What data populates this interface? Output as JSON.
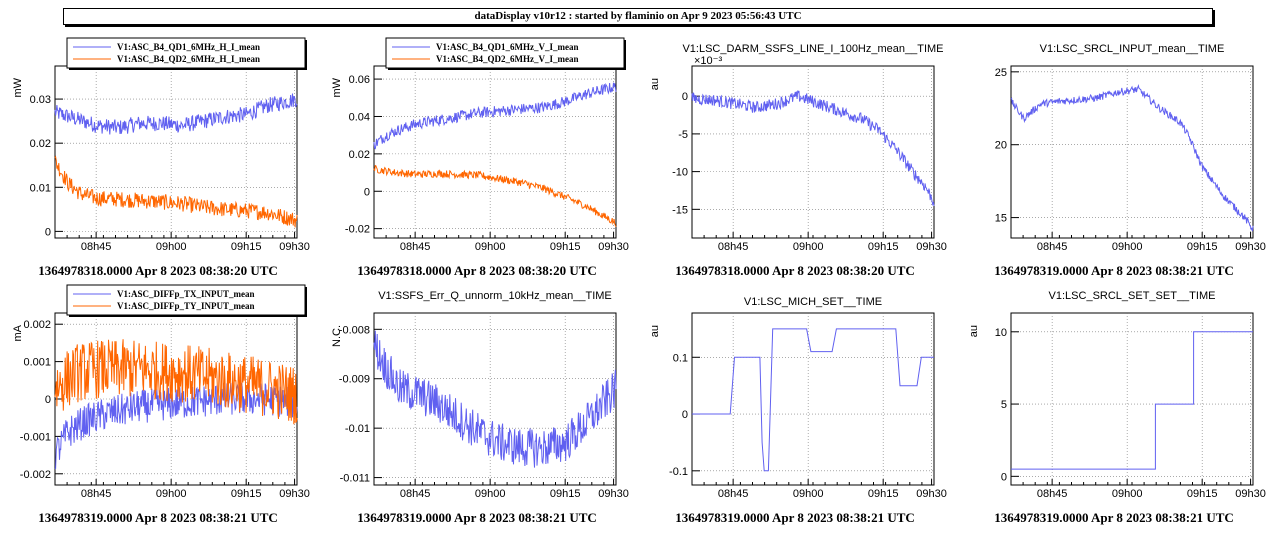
{
  "page": {
    "title": "dataDisplay v10r12 : started by flaminio on Apr  9 2023 05:56:43 UTC"
  },
  "chart_data": [
    {
      "type": "line",
      "title": "",
      "ylabel": "mW",
      "caption": "1364978318.0000 Apr 8 2023 08:38:20 UTC",
      "x_tick_labels": [
        "08h45",
        "09h00",
        "09h15",
        "09h30"
      ],
      "y_ticks": [
        0,
        0.01,
        0.02,
        0.03
      ],
      "y_tick_labels": [
        "0",
        "0.01",
        "0.02",
        "0.03"
      ],
      "xlim": [
        0,
        57
      ],
      "ylim": [
        -0.0015,
        0.0375
      ],
      "grid": true,
      "legend_position": "top-left",
      "series": [
        {
          "name": "V1:ASC_B4_QD1_6MHz_H_I_mean",
          "color": "#6060f0",
          "noise": 0.0018,
          "x": [
            0,
            5,
            10,
            15,
            20,
            25,
            30,
            35,
            40,
            45,
            50,
            57
          ],
          "y": [
            0.027,
            0.0255,
            0.024,
            0.0235,
            0.0245,
            0.0245,
            0.024,
            0.025,
            0.026,
            0.0265,
            0.0285,
            0.03
          ]
        },
        {
          "name": "V1:ASC_B4_QD2_6MHz_H_I_mean",
          "color": "#ff6600",
          "noise": 0.0018,
          "x": [
            0,
            3,
            6,
            10,
            15,
            20,
            25,
            30,
            35,
            40,
            45,
            50,
            57
          ],
          "y": [
            0.016,
            0.011,
            0.0085,
            0.0075,
            0.0073,
            0.007,
            0.0067,
            0.0063,
            0.0055,
            0.005,
            0.0047,
            0.0043,
            0.0025
          ]
        }
      ]
    },
    {
      "type": "line",
      "title": "",
      "ylabel": "mW",
      "caption": "1364978318.0000 Apr 8 2023 08:38:20 UTC",
      "x_tick_labels": [
        "08h45",
        "09h00",
        "09h15",
        "09h30"
      ],
      "y_ticks": [
        -0.02,
        0,
        0.02,
        0.04,
        0.06
      ],
      "y_tick_labels": [
        "-0.02",
        "0",
        "0.02",
        "0.04",
        "0.06"
      ],
      "xlim": [
        0,
        57
      ],
      "ylim": [
        -0.025,
        0.067
      ],
      "grid": true,
      "legend_position": "top-left",
      "series": [
        {
          "name": "V1:ASC_B4_QD1_6MHz_V_I_mean",
          "color": "#6060f0",
          "noise": 0.003,
          "x": [
            0,
            3,
            6,
            10,
            15,
            20,
            25,
            30,
            35,
            40,
            45,
            50,
            57
          ],
          "y": [
            0.025,
            0.03,
            0.033,
            0.036,
            0.038,
            0.04,
            0.042,
            0.043,
            0.044,
            0.045,
            0.048,
            0.052,
            0.056
          ]
        },
        {
          "name": "V1:ASC_B4_QD2_6MHz_V_I_mean",
          "color": "#ff6600",
          "noise": 0.002,
          "x": [
            0,
            5,
            10,
            15,
            20,
            25,
            30,
            35,
            40,
            45,
            50,
            57
          ],
          "y": [
            0.012,
            0.01,
            0.009,
            0.0095,
            0.009,
            0.0085,
            0.0065,
            0.0045,
            0.0015,
            -0.003,
            -0.008,
            -0.017
          ]
        }
      ]
    },
    {
      "type": "line",
      "title": "V1:LSC_DARM_SSFS_LINE_I_100Hz_mean__TIME",
      "ylabel": "au",
      "exponent_label": "×10⁻³",
      "caption": "1364978318.0000 Apr 8 2023 08:38:20 UTC",
      "x_tick_labels": [
        "08h45",
        "09h00",
        "09h15",
        "09h30"
      ],
      "y_ticks": [
        0,
        -5,
        -10,
        -15
      ],
      "y_tick_labels": [
        "0",
        "-5",
        "-10",
        "-15"
      ],
      "xlim": [
        0,
        57
      ],
      "ylim": [
        -18.8,
        4
      ],
      "grid": true,
      "legend_position": "none",
      "series": [
        {
          "name": "",
          "color": "#6060f0",
          "noise": 0.8,
          "x": [
            0,
            5,
            10,
            15,
            20,
            25,
            30,
            35,
            40,
            44,
            48,
            52,
            55,
            57
          ],
          "y": [
            -0.3,
            -0.5,
            -1,
            -1.5,
            -1,
            0,
            -1,
            -2,
            -3,
            -4.5,
            -7,
            -10,
            -12,
            -14
          ]
        }
      ]
    },
    {
      "type": "line",
      "title": "V1:LSC_SRCL_INPUT_mean__TIME",
      "ylabel": "",
      "caption": "1364978319.0000 Apr 8 2023 08:38:21 UTC",
      "x_tick_labels": [
        "08h45",
        "09h00",
        "09h15",
        "09h30"
      ],
      "y_ticks": [
        15,
        20,
        25
      ],
      "y_tick_labels": [
        "15",
        "20",
        "25"
      ],
      "xlim": [
        0,
        57
      ],
      "ylim": [
        13.6,
        25.4
      ],
      "grid": true,
      "legend_position": "none",
      "series": [
        {
          "name": "",
          "color": "#6060f0",
          "noise": 0.25,
          "x": [
            0,
            3,
            7,
            12,
            20,
            25,
            30,
            35,
            40,
            42,
            45,
            50,
            55,
            57
          ],
          "y": [
            23,
            21.8,
            22.8,
            23,
            23.2,
            23.6,
            23.8,
            22.5,
            21.5,
            20.5,
            18.5,
            16.5,
            15,
            14.2
          ]
        }
      ]
    },
    {
      "type": "line",
      "title": "",
      "ylabel": "mA",
      "caption": "1364978319.0000 Apr 8 2023 08:38:21 UTC",
      "x_tick_labels": [
        "08h45",
        "09h00",
        "09h15",
        "09h30"
      ],
      "y_ticks": [
        -0.002,
        -0.001,
        0,
        0.001,
        0.002
      ],
      "y_tick_labels": [
        "-0.002",
        "-0.001",
        "0",
        "0.001",
        "0.002"
      ],
      "xlim": [
        0,
        57
      ],
      "ylim": [
        -0.0023,
        0.0023
      ],
      "grid": true,
      "legend_position": "top-left",
      "series": [
        {
          "name": "V1:ASC_DIFFp_TX_INPUT_mean",
          "color": "#6060f0",
          "noise": 0.00045,
          "x": [
            0,
            3,
            7,
            12,
            20,
            30,
            40,
            50,
            57
          ],
          "y": [
            -0.0015,
            -0.0009,
            -0.0006,
            -0.0004,
            -0.0002,
            -0.0001,
            0,
            0,
            -0.0001
          ]
        },
        {
          "name": "V1:ASC_DIFFp_TY_INPUT_mean",
          "color": "#ff6600",
          "noise": 0.0008,
          "x": [
            0,
            5,
            10,
            20,
            30,
            40,
            50,
            57
          ],
          "y": [
            0.0003,
            0.0007,
            0.0008,
            0.0008,
            0.0007,
            0.0005,
            0.0003,
            0.0001
          ]
        }
      ]
    },
    {
      "type": "line",
      "title": "V1:SSFS_Err_Q_unnorm_10kHz_mean__TIME",
      "ylabel": "N.C.",
      "caption": "1364978319.0000 Apr 8 2023 08:38:21 UTC",
      "x_tick_labels": [
        "08h45",
        "09h00",
        "09h15",
        "09h30"
      ],
      "y_ticks": [
        -0.008,
        -0.009,
        -0.01,
        -0.011
      ],
      "y_tick_labels": [
        "-0.008",
        "-0.009",
        "-0.01",
        "-0.011"
      ],
      "xlim": [
        0,
        57
      ],
      "ylim": [
        -0.01115,
        -0.00767
      ],
      "grid": true,
      "legend_position": "none",
      "series": [
        {
          "name": "",
          "color": "#6060f0",
          "noise": 0.0004,
          "x": [
            0,
            3,
            6,
            10,
            15,
            20,
            25,
            30,
            35,
            40,
            45,
            50,
            55,
            57
          ],
          "y": [
            -0.0083,
            -0.0088,
            -0.0092,
            -0.0093,
            -0.0095,
            -0.0098,
            -0.0101,
            -0.0103,
            -0.0104,
            -0.0104,
            -0.0103,
            -0.0099,
            -0.0094,
            -0.0092
          ]
        }
      ]
    },
    {
      "type": "line",
      "step": true,
      "noise": 0,
      "title": "V1:LSC_MICH_SET__TIME",
      "ylabel": "au",
      "caption": "1364978319.0000 Apr 8 2023 08:38:21 UTC",
      "x_tick_labels": [
        "08h45",
        "09h00",
        "09h15",
        "09h30"
      ],
      "y_ticks": [
        -0.1,
        0,
        0.1
      ],
      "y_tick_labels": [
        "-0.1",
        "0",
        "0.1"
      ],
      "xlim": [
        0,
        57
      ],
      "ylim": [
        -0.125,
        0.178
      ],
      "grid": true,
      "legend_position": "none",
      "series": [
        {
          "name": "",
          "color": "#6060f0",
          "noise": 0,
          "x": [
            0,
            9,
            10,
            16,
            16.5,
            17,
            18,
            19,
            20,
            27,
            28,
            33,
            34,
            48,
            49,
            53,
            54,
            57
          ],
          "y": [
            0,
            0,
            0.1,
            0.1,
            -0.05,
            -0.1,
            -0.1,
            0.15,
            0.15,
            0.15,
            0.11,
            0.11,
            0.15,
            0.15,
            0.05,
            0.05,
            0.1,
            0.1
          ]
        }
      ]
    },
    {
      "type": "line",
      "step": true,
      "title": "V1:LSC_SRCL_SET_SET__TIME",
      "ylabel": "au",
      "caption": "1364978319.0000 Apr 8 2023 08:38:21 UTC",
      "x_tick_labels": [
        "08h45",
        "09h00",
        "09h15",
        "09h30"
      ],
      "y_ticks": [
        0,
        5,
        10
      ],
      "y_tick_labels": [
        "0",
        "5",
        "10"
      ],
      "xlim": [
        0,
        57
      ],
      "ylim": [
        -0.6,
        11.3
      ],
      "grid": true,
      "legend_position": "none",
      "series": [
        {
          "name": "",
          "color": "#6060f0",
          "noise": 0,
          "x": [
            0,
            34,
            34,
            43,
            43,
            57
          ],
          "y": [
            0.5,
            0.5,
            5,
            5,
            10,
            10
          ]
        }
      ]
    }
  ]
}
